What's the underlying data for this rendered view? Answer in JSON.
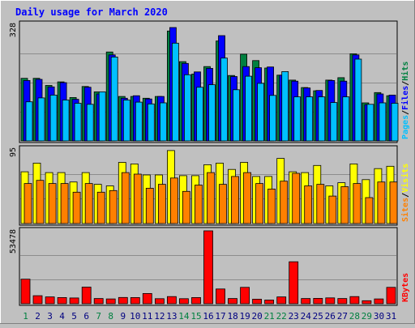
{
  "colors": {
    "background": "#c0c0c0",
    "plot_bg": "#c0c0c0",
    "grid": "#8c8c8c",
    "title": "#0000ff",
    "hits": "#008040",
    "files": "#0000ff",
    "pages": "#00c0ff",
    "visits": "#ffff00",
    "sites": "#ff8000",
    "kbytes": "#ff0000",
    "day_normal": "#000080",
    "day_weekend": "#008040"
  },
  "chart_data": {
    "type": "bar",
    "title": "Daily usage for March 2020",
    "x": [
      "1",
      "2",
      "3",
      "4",
      "5",
      "6",
      "7",
      "8",
      "9",
      "10",
      "11",
      "12",
      "13",
      "14",
      "15",
      "16",
      "17",
      "18",
      "19",
      "20",
      "21",
      "22",
      "23",
      "24",
      "25",
      "26",
      "27",
      "28",
      "29",
      "30",
      "31"
    ],
    "weekend_days": [
      "1",
      "7",
      "8",
      "14",
      "15",
      "21",
      "22",
      "28",
      "29"
    ],
    "panels": [
      {
        "name": "hits-files-pages",
        "ymax_label": "328",
        "ylim": [
          0,
          328
        ],
        "legend": [
          "Pages",
          "/",
          "Files",
          "/",
          "Hits"
        ],
        "series": [
          {
            "name": "Hits",
            "color_key": "hits",
            "values": [
              176,
              176,
              156,
              166,
              122,
              153,
              138,
              250,
              125,
              125,
              120,
              125,
              309,
              223,
              188,
              209,
              281,
              184,
              244,
              226,
              205,
              185,
              171,
              150,
              141,
              171,
              178,
              245,
              107,
              136,
              127
            ]
          },
          {
            "name": "Files",
            "color_key": "files",
            "values": [
              170,
              173,
              152,
              164,
              117,
              151,
              132,
              242,
              120,
              127,
              118,
              125,
              319,
              218,
              194,
              204,
              296,
              181,
              209,
              206,
              208,
              185,
              168,
              149,
              142,
              170,
              168,
              242,
              102,
              132,
              129
            ]
          },
          {
            "name": "Pages",
            "color_key": "pages",
            "values": [
              110,
              121,
              129,
              115,
              106,
              103,
              138,
              236,
              115,
              109,
              104,
              107,
              275,
              186,
              151,
              158,
              233,
              144,
              182,
              162,
              128,
              195,
              124,
              124,
              124,
              108,
              124,
              230,
              103,
              107,
              106
            ]
          }
        ]
      },
      {
        "name": "visits-sites",
        "ymax_label": "95",
        "ylim": [
          0,
          95
        ],
        "legend": [
          "Sites",
          "/",
          "Visits"
        ],
        "series": [
          {
            "name": "Visits",
            "color_key": "visits",
            "values": [
              66,
              77,
              65,
              65,
              53,
              65,
              50,
              48,
              78,
              76,
              62,
              62,
              93,
              61,
              61,
              75,
              77,
              69,
              78,
              60,
              60,
              83,
              66,
              65,
              74,
              48,
              52,
              76,
              56,
              70,
              73
            ]
          },
          {
            "name": "Sites",
            "color_key": "sites",
            "values": [
              51,
              55,
              51,
              51,
              40,
              51,
              40,
              42,
              65,
              63,
              45,
              50,
              58,
              41,
              49,
              65,
              50,
              60,
              65,
              51,
              44,
              54,
              64,
              48,
              50,
              35,
              47,
              51,
              33,
              53,
              53
            ]
          }
        ]
      },
      {
        "name": "kbytes",
        "ymax_label": "53478",
        "ylim": [
          0,
          53478
        ],
        "legend": [
          "KBytes"
        ],
        "series": [
          {
            "name": "KBytes",
            "color_key": "kbytes",
            "values": [
              18000,
              5900,
              5000,
              4500,
              4200,
              12200,
              3800,
              3500,
              4600,
              4500,
              7500,
              3700,
              5200,
              3700,
              4500,
              53478,
              10800,
              3800,
              12000,
              3300,
              2700,
              5000,
              30800,
              3800,
              3900,
              4300,
              3800,
              5200,
              2200,
              3500,
              12000
            ]
          }
        ]
      }
    ]
  }
}
